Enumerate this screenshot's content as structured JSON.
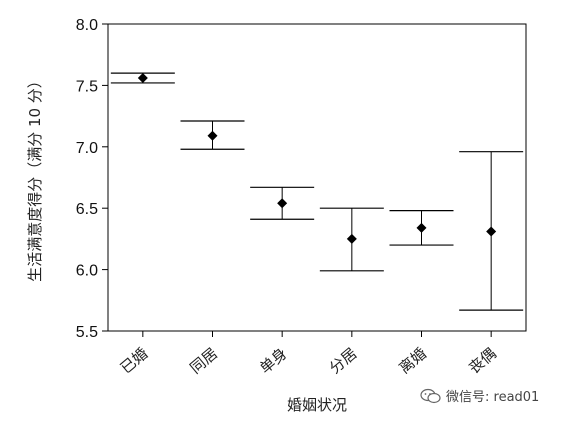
{
  "chart_data": {
    "type": "errorbar",
    "categories": [
      "已婚",
      "同居",
      "单身",
      "分居",
      "离婚",
      "丧偶"
    ],
    "points": [
      {
        "category": "已婚",
        "mean": 7.56,
        "lower": 7.52,
        "upper": 7.6
      },
      {
        "category": "同居",
        "mean": 7.09,
        "lower": 6.98,
        "upper": 7.21
      },
      {
        "category": "单身",
        "mean": 6.54,
        "lower": 6.41,
        "upper": 6.67
      },
      {
        "category": "分居",
        "mean": 6.25,
        "lower": 5.99,
        "upper": 6.5
      },
      {
        "category": "离婚",
        "mean": 6.34,
        "lower": 6.2,
        "upper": 6.48
      },
      {
        "category": "丧偶",
        "mean": 6.31,
        "lower": 5.67,
        "upper": 6.96
      }
    ],
    "xlabel": "婚姻状况",
    "ylabel": "生活满意度得分（满分 10 分）",
    "ylim": [
      5.5,
      8.0
    ],
    "yticks": [
      "5.5",
      "6.0",
      "6.5",
      "7.0",
      "7.5",
      "8.0"
    ],
    "grid": false,
    "colors": {
      "marker": "#000000",
      "axis": "#000000"
    }
  },
  "watermark": {
    "icon": "wechat-icon",
    "text": "微信号: read01"
  }
}
